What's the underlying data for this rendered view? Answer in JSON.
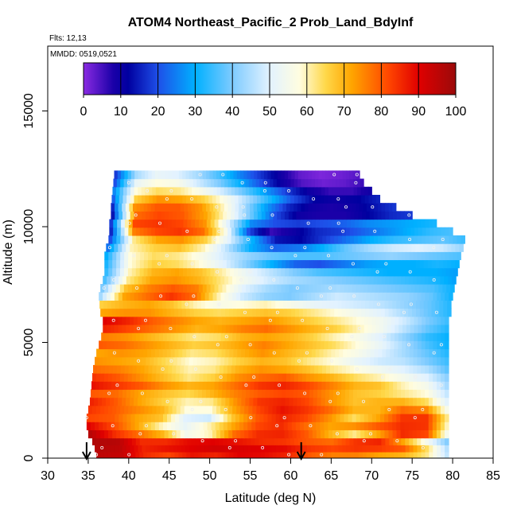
{
  "chart_data": {
    "type": "heatmap",
    "title": "ATOM4 Northeast_Pacific_2 Prob_Land_BdyInf",
    "flights_label": "Flts: 12,13",
    "dates_label": "MMDD: 0519,0521",
    "xlabel": "Latitude (deg N)",
    "ylabel": "Altitude (m)",
    "xlim": [
      30,
      85
    ],
    "ylim": [
      0,
      17800
    ],
    "xticks": [
      30,
      35,
      40,
      45,
      50,
      55,
      60,
      65,
      70,
      75,
      80,
      85
    ],
    "yticks": [
      0,
      5000,
      10000,
      15000
    ],
    "colorbar": {
      "ticks": [
        0,
        10,
        20,
        30,
        40,
        50,
        60,
        70,
        80,
        90,
        100
      ],
      "range": [
        0,
        100
      ],
      "stops": [
        {
          "v": 0,
          "color": "#8a2be2"
        },
        {
          "v": 8,
          "color": "#1a00a8"
        },
        {
          "v": 12,
          "color": "#0000a0"
        },
        {
          "v": 20,
          "color": "#1e4fe8"
        },
        {
          "v": 30,
          "color": "#00b0ff"
        },
        {
          "v": 40,
          "color": "#7ecbff"
        },
        {
          "v": 50,
          "color": "#e2f2ff"
        },
        {
          "v": 58,
          "color": "#fffde0"
        },
        {
          "v": 65,
          "color": "#ffd84a"
        },
        {
          "v": 72,
          "color": "#ffa500"
        },
        {
          "v": 82,
          "color": "#ff4500"
        },
        {
          "v": 90,
          "color": "#e00000"
        },
        {
          "v": 100,
          "color": "#9b0a0a"
        }
      ]
    },
    "arrows_latitude": [
      34.8,
      61.3
    ],
    "bands": [
      {
        "alt": 150,
        "xmin": 36.0,
        "xmax": 79.5,
        "vals": [
          95,
          94,
          85,
          82,
          88,
          86,
          90,
          89,
          86,
          80,
          76,
          76,
          72,
          70,
          62,
          44
        ]
      },
      {
        "alt": 450,
        "xmin": 35.8,
        "xmax": 79.5,
        "vals": [
          96,
          95,
          86,
          88,
          90,
          92,
          91,
          90,
          89,
          84,
          82,
          84,
          83,
          80,
          64,
          42
        ]
      },
      {
        "alt": 750,
        "xmin": 35.5,
        "xmax": 79.5,
        "vals": [
          97,
          96,
          85,
          85,
          89,
          90,
          88,
          85,
          84,
          80,
          78,
          84,
          86,
          72,
          55,
          38
        ]
      },
      {
        "alt": 1050,
        "xmin": 35.0,
        "xmax": 79.5,
        "vals": [
          96,
          85,
          78,
          70,
          55,
          60,
          78,
          85,
          86,
          80,
          70,
          62,
          72,
          85,
          82,
          50
        ]
      },
      {
        "alt": 1400,
        "xmin": 34.8,
        "xmax": 79.5,
        "vals": [
          90,
          82,
          72,
          60,
          52,
          60,
          72,
          82,
          85,
          78,
          72,
          74,
          80,
          85,
          84,
          55
        ]
      },
      {
        "alt": 1750,
        "xmin": 34.8,
        "xmax": 79.5,
        "vals": [
          82,
          80,
          72,
          68,
          50,
          48,
          68,
          80,
          86,
          82,
          74,
          64,
          72,
          84,
          84,
          58
        ]
      },
      {
        "alt": 2100,
        "xmin": 35.0,
        "xmax": 79.5,
        "vals": [
          84,
          80,
          75,
          70,
          58,
          58,
          72,
          82,
          88,
          84,
          78,
          70,
          70,
          78,
          75,
          52
        ]
      },
      {
        "alt": 2450,
        "xmin": 35.2,
        "xmax": 79.5,
        "vals": [
          86,
          80,
          72,
          66,
          60,
          62,
          74,
          84,
          86,
          82,
          74,
          68,
          70,
          70,
          64,
          48
        ]
      },
      {
        "alt": 2800,
        "xmin": 35.3,
        "xmax": 79.5,
        "vals": [
          80,
          78,
          72,
          68,
          65,
          70,
          76,
          80,
          82,
          80,
          74,
          68,
          66,
          62,
          58,
          45
        ]
      },
      {
        "alt": 3150,
        "xmin": 35.4,
        "xmax": 79.5,
        "vals": [
          88,
          84,
          80,
          74,
          70,
          72,
          78,
          84,
          86,
          82,
          76,
          70,
          68,
          60,
          55,
          42
        ]
      },
      {
        "alt": 3500,
        "xmin": 35.5,
        "xmax": 79.5,
        "vals": [
          84,
          80,
          74,
          68,
          62,
          66,
          74,
          78,
          80,
          74,
          70,
          64,
          60,
          55,
          50,
          40
        ]
      },
      {
        "alt": 3850,
        "xmin": 35.6,
        "xmax": 79.5,
        "vals": [
          78,
          76,
          72,
          66,
          60,
          62,
          70,
          74,
          72,
          68,
          62,
          58,
          54,
          50,
          45,
          36
        ]
      },
      {
        "alt": 4200,
        "xmin": 35.8,
        "xmax": 79.5,
        "vals": [
          74,
          72,
          70,
          64,
          58,
          60,
          66,
          70,
          68,
          62,
          58,
          52,
          48,
          46,
          40,
          34
        ]
      },
      {
        "alt": 4550,
        "xmin": 36.0,
        "xmax": 79.5,
        "vals": [
          72,
          74,
          72,
          68,
          62,
          64,
          70,
          74,
          70,
          66,
          60,
          56,
          50,
          44,
          38,
          32
        ]
      },
      {
        "alt": 4900,
        "xmin": 36.3,
        "xmax": 79.5,
        "vals": [
          80,
          78,
          74,
          70,
          66,
          68,
          72,
          76,
          72,
          68,
          64,
          58,
          52,
          44,
          36,
          30
        ]
      },
      {
        "alt": 5250,
        "xmin": 36.6,
        "xmax": 79.5,
        "vals": [
          76,
          74,
          70,
          66,
          62,
          64,
          70,
          72,
          70,
          66,
          60,
          56,
          50,
          42,
          34,
          30
        ]
      },
      {
        "alt": 5600,
        "xmin": 36.8,
        "xmax": 79.5,
        "vals": [
          86,
          82,
          78,
          74,
          70,
          72,
          76,
          78,
          74,
          70,
          66,
          60,
          54,
          46,
          38,
          32
        ]
      },
      {
        "alt": 5950,
        "xmin": 36.8,
        "xmax": 79.5,
        "vals": [
          90,
          86,
          80,
          76,
          72,
          70,
          72,
          74,
          70,
          66,
          62,
          58,
          54,
          48,
          40,
          34
        ]
      },
      {
        "alt": 6300,
        "xmin": 36.5,
        "xmax": 79.8,
        "vals": [
          72,
          74,
          74,
          70,
          66,
          64,
          66,
          68,
          66,
          62,
          58,
          54,
          50,
          44,
          38,
          32
        ]
      },
      {
        "alt": 6650,
        "xmin": 36.4,
        "xmax": 79.8,
        "vals": [
          66,
          70,
          72,
          68,
          60,
          56,
          58,
          60,
          56,
          52,
          50,
          48,
          46,
          42,
          38,
          32
        ]
      },
      {
        "alt": 7000,
        "xmin": 36.3,
        "xmax": 80.0,
        "vals": [
          44,
          72,
          78,
          84,
          78,
          60,
          48,
          42,
          40,
          44,
          48,
          46,
          44,
          42,
          38,
          30
        ]
      },
      {
        "alt": 7350,
        "xmin": 36.5,
        "xmax": 80.2,
        "vals": [
          40,
          68,
          76,
          80,
          76,
          62,
          50,
          44,
          40,
          42,
          44,
          42,
          40,
          38,
          36,
          30
        ]
      },
      {
        "alt": 7700,
        "xmin": 36.8,
        "xmax": 80.4,
        "vals": [
          36,
          62,
          72,
          74,
          70,
          62,
          54,
          48,
          44,
          42,
          40,
          38,
          36,
          34,
          32,
          28
        ]
      },
      {
        "alt": 8050,
        "xmin": 37.0,
        "xmax": 80.6,
        "vals": [
          34,
          60,
          70,
          72,
          68,
          60,
          52,
          46,
          40,
          36,
          34,
          32,
          30,
          30,
          30,
          28
        ]
      },
      {
        "alt": 8400,
        "xmin": 37.0,
        "xmax": 80.8,
        "vals": [
          32,
          58,
          66,
          64,
          58,
          50,
          40,
          30,
          22,
          20,
          24,
          28,
          30,
          30,
          32,
          30
        ]
      },
      {
        "alt": 8750,
        "xmin": 37.0,
        "xmax": 81.0,
        "vals": [
          30,
          58,
          64,
          62,
          56,
          48,
          42,
          38,
          36,
          36,
          38,
          40,
          42,
          40,
          38,
          36
        ]
      },
      {
        "alt": 9100,
        "xmin": 37.2,
        "xmax": 81.3,
        "vals": [
          24,
          60,
          66,
          68,
          60,
          46,
          30,
          22,
          24,
          30,
          38,
          44,
          48,
          50,
          48,
          42
        ]
      },
      {
        "alt": 9450,
        "xmin": 37.5,
        "xmax": 81.5,
        "vals": [
          20,
          62,
          72,
          74,
          66,
          50,
          30,
          14,
          12,
          18,
          24,
          30,
          34,
          36,
          38,
          34
        ]
      },
      {
        "alt": 9800,
        "xmin": 37.6,
        "xmax": 80.0,
        "vals": [
          16,
          76,
          82,
          84,
          78,
          56,
          20,
          6,
          10,
          16,
          18,
          22,
          26,
          30,
          34,
          36
        ]
      },
      {
        "alt": 10150,
        "xmin": 37.6,
        "xmax": 78.0,
        "vals": [
          18,
          82,
          84,
          82,
          74,
          50,
          26,
          20,
          18,
          20,
          22,
          26,
          28,
          30,
          32
        ]
      },
      {
        "alt": 10500,
        "xmin": 37.8,
        "xmax": 75.0,
        "vals": [
          14,
          78,
          82,
          80,
          72,
          56,
          38,
          20,
          10,
          8,
          8,
          12,
          16,
          18
        ]
      },
      {
        "alt": 10850,
        "xmin": 37.8,
        "xmax": 73.0,
        "vals": [
          16,
          74,
          80,
          80,
          74,
          60,
          44,
          28,
          16,
          10,
          8,
          10,
          14,
          18
        ]
      },
      {
        "alt": 11200,
        "xmin": 37.9,
        "xmax": 71.0,
        "vals": [
          22,
          66,
          74,
          72,
          66,
          56,
          44,
          32,
          20,
          12,
          10,
          12,
          16
        ]
      },
      {
        "alt": 11550,
        "xmin": 38.0,
        "xmax": 70.0,
        "vals": [
          26,
          58,
          64,
          62,
          56,
          48,
          38,
          28,
          18,
          10,
          6,
          6,
          10
        ]
      },
      {
        "alt": 11900,
        "xmin": 38.1,
        "xmax": 69.0,
        "vals": [
          20,
          52,
          58,
          56,
          48,
          40,
          30,
          20,
          10,
          4,
          2,
          3,
          6
        ]
      },
      {
        "alt": 12250,
        "xmin": 38.2,
        "xmax": 68.5,
        "vals": [
          18,
          44,
          52,
          50,
          44,
          36,
          26,
          18,
          10,
          3,
          1,
          2,
          4
        ]
      }
    ]
  }
}
